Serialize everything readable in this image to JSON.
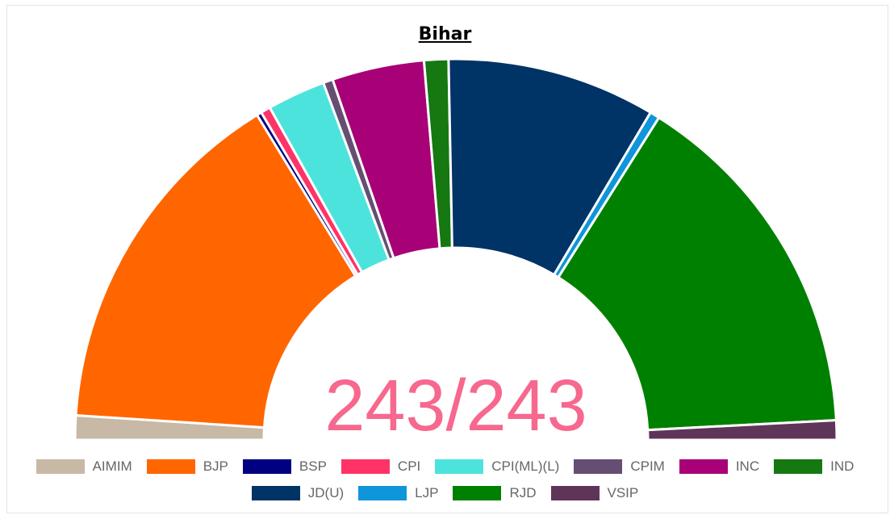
{
  "chart_data": {
    "type": "pie",
    "variant": "semicircle-parliament",
    "title": "Bihar",
    "center_label": "243/243",
    "total_seats": 243,
    "slices": [
      {
        "name": "AIMIM",
        "value": 5,
        "color": "#c8b8a6"
      },
      {
        "name": "BJP",
        "value": 74,
        "color": "#ff6600"
      },
      {
        "name": "BSP",
        "value": 1,
        "color": "#000080"
      },
      {
        "name": "CPI",
        "value": 2,
        "color": "#ff3366"
      },
      {
        "name": "CPI(ML)(L)",
        "value": 12,
        "color": "#4de3dd"
      },
      {
        "name": "CPIM",
        "value": 2,
        "color": "#664e73"
      },
      {
        "name": "INC",
        "value": 19,
        "color": "#a80077"
      },
      {
        "name": "IND",
        "value": 5,
        "color": "#157811"
      },
      {
        "name": "JD(U)",
        "value": 43,
        "color": "#003366"
      },
      {
        "name": "LJP",
        "value": 2,
        "color": "#0e95da"
      },
      {
        "name": "RJD",
        "value": 74,
        "color": "#008000"
      },
      {
        "name": "VSIP",
        "value": 4,
        "color": "#5e3559"
      }
    ],
    "legend_position": "bottom"
  }
}
